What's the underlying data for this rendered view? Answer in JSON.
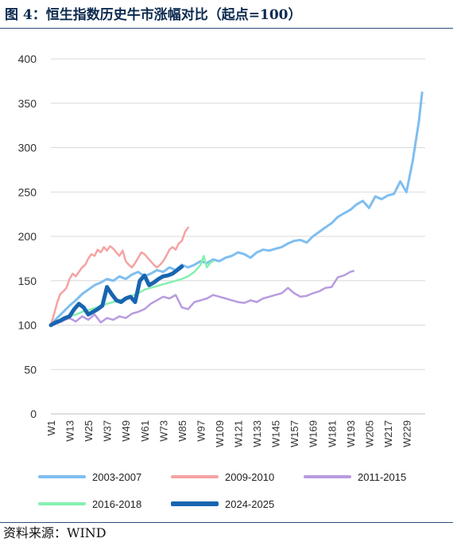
{
  "title": "图 4：恒生指数历史牛市涨幅对比（起点=100）",
  "source": "资料来源：WIND",
  "chart_data": {
    "type": "line",
    "title": "图 4：恒生指数历史牛市涨幅对比（起点=100）",
    "xlabel": "",
    "ylabel": "",
    "ylim": [
      0,
      400
    ],
    "xlim": [
      1,
      241
    ],
    "yticks": [
      0,
      50,
      100,
      150,
      200,
      250,
      300,
      350,
      400
    ],
    "xticks": [
      "W1",
      "W13",
      "W25",
      "W37",
      "W49",
      "W61",
      "W73",
      "W85",
      "W97",
      "W109",
      "W121",
      "W133",
      "W145",
      "W157",
      "W169",
      "W181",
      "W193",
      "W205",
      "W217",
      "W229"
    ],
    "xtick_positions": [
      1,
      13,
      25,
      37,
      49,
      61,
      73,
      85,
      97,
      109,
      121,
      133,
      145,
      157,
      169,
      181,
      193,
      205,
      217,
      229
    ],
    "grid": "horizontal",
    "legend_position": "bottom",
    "series": [
      {
        "name": "2003-2007",
        "color": "#7fbef0",
        "width": 3,
        "x": [
          1,
          5,
          9,
          13,
          17,
          21,
          25,
          29,
          33,
          37,
          41,
          45,
          49,
          53,
          57,
          61,
          65,
          69,
          73,
          77,
          81,
          85,
          89,
          93,
          97,
          101,
          105,
          109,
          113,
          117,
          121,
          125,
          129,
          133,
          137,
          141,
          145,
          149,
          153,
          157,
          161,
          165,
          169,
          173,
          177,
          181,
          185,
          189,
          193,
          197,
          201,
          205,
          209,
          213,
          217,
          221,
          225,
          229,
          233,
          237,
          239
        ],
        "y": [
          100,
          108,
          115,
          122,
          128,
          135,
          140,
          145,
          148,
          152,
          150,
          155,
          152,
          157,
          160,
          155,
          158,
          162,
          160,
          165,
          162,
          168,
          165,
          168,
          172,
          170,
          174,
          172,
          176,
          178,
          182,
          180,
          176,
          182,
          185,
          184,
          186,
          188,
          192,
          195,
          196,
          193,
          200,
          205,
          210,
          215,
          222,
          226,
          230,
          236,
          240,
          232,
          245,
          242,
          246,
          248,
          262,
          250,
          285,
          330,
          362
        ]
      },
      {
        "name": "2009-2010",
        "color": "#f4a3a3",
        "width": 2.5,
        "x": [
          1,
          3,
          5,
          7,
          9,
          11,
          13,
          15,
          17,
          19,
          21,
          23,
          25,
          27,
          29,
          31,
          33,
          35,
          37,
          39,
          41,
          43,
          45,
          47,
          49,
          51,
          53,
          55,
          57,
          59,
          61,
          63,
          65,
          67,
          69,
          71,
          73,
          75,
          77,
          79,
          81,
          83,
          85,
          87,
          89
        ],
        "y": [
          100,
          112,
          125,
          135,
          138,
          142,
          152,
          158,
          155,
          160,
          165,
          168,
          175,
          180,
          178,
          185,
          182,
          188,
          184,
          189,
          186,
          182,
          178,
          184,
          172,
          168,
          165,
          170,
          176,
          182,
          180,
          176,
          172,
          168,
          165,
          168,
          172,
          178,
          185,
          188,
          185,
          192,
          195,
          205,
          210
        ]
      },
      {
        "name": "2011-2015",
        "color": "#b99be0",
        "width": 2.5,
        "x": [
          1,
          5,
          9,
          13,
          17,
          21,
          25,
          29,
          33,
          37,
          41,
          45,
          49,
          53,
          57,
          61,
          65,
          69,
          73,
          77,
          81,
          85,
          89,
          93,
          97,
          101,
          105,
          109,
          113,
          117,
          121,
          125,
          129,
          133,
          137,
          141,
          145,
          149,
          153,
          157,
          161,
          165,
          169,
          173,
          177,
          181,
          185,
          189,
          193,
          195
        ],
        "y": [
          100,
          102,
          105,
          108,
          104,
          110,
          106,
          112,
          103,
          108,
          106,
          110,
          108,
          113,
          115,
          118,
          124,
          128,
          132,
          130,
          134,
          120,
          118,
          126,
          128,
          130,
          134,
          132,
          130,
          128,
          126,
          125,
          128,
          126,
          130,
          132,
          134,
          136,
          142,
          136,
          132,
          133,
          136,
          138,
          142,
          143,
          154,
          156,
          160,
          161
        ]
      },
      {
        "name": "2016-2018",
        "color": "#85f0b0",
        "width": 2.5,
        "x": [
          1,
          5,
          9,
          13,
          17,
          21,
          25,
          29,
          33,
          37,
          41,
          45,
          49,
          53,
          57,
          61,
          65,
          69,
          73,
          77,
          81,
          85,
          89,
          93,
          97,
          99,
          101,
          103,
          105
        ],
        "y": [
          100,
          104,
          108,
          110,
          112,
          115,
          117,
          119,
          122,
          124,
          126,
          128,
          130,
          133,
          136,
          140,
          142,
          144,
          146,
          148,
          150,
          152,
          155,
          160,
          168,
          178,
          165,
          170,
          172
        ]
      },
      {
        "name": "2024-2025",
        "color": "#1865b0",
        "width": 5,
        "x": [
          1,
          4,
          7,
          10,
          13,
          16,
          19,
          22,
          25,
          28,
          31,
          34,
          37,
          40,
          43,
          46,
          49,
          52,
          55,
          58,
          61,
          64,
          67,
          70,
          73,
          76,
          79,
          82,
          85
        ],
        "y": [
          100,
          103,
          105,
          108,
          110,
          118,
          124,
          120,
          112,
          115,
          118,
          122,
          143,
          135,
          128,
          126,
          130,
          132,
          126,
          150,
          156,
          145,
          148,
          152,
          155,
          156,
          158,
          162,
          166
        ]
      }
    ]
  }
}
